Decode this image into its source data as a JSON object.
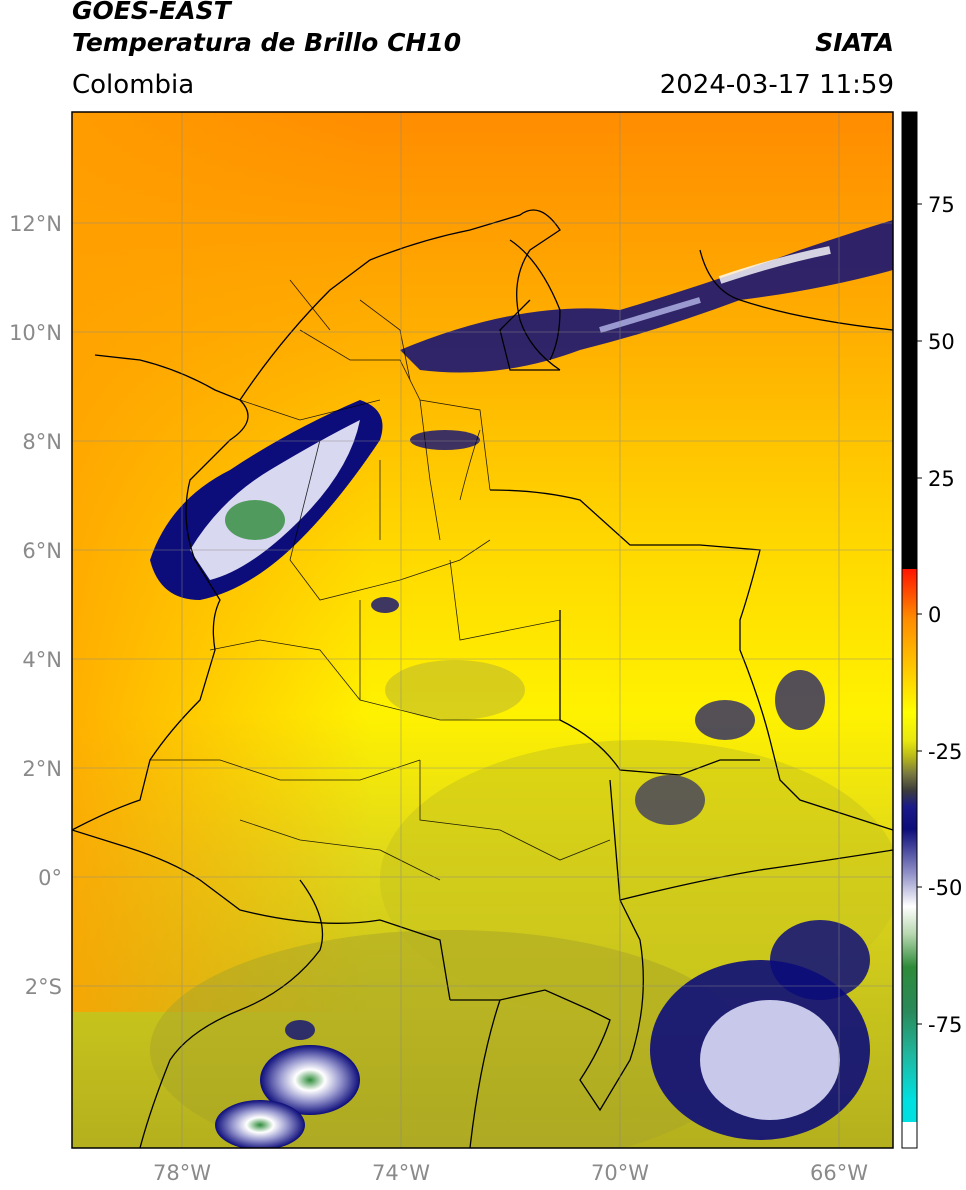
{
  "header": {
    "satellite": "GOES-EAST",
    "product": "Temperatura de Brillo CH10",
    "organization": "SIATA",
    "region": "Colombia",
    "timestamp": "2024-03-17 11:59"
  },
  "axes": {
    "lat_labels": [
      "12°N",
      "10°N",
      "8°N",
      "6°N",
      "4°N",
      "2°N",
      "0°",
      "2°S"
    ],
    "lon_labels": [
      "78°W",
      "74°W",
      "70°W",
      "66°W"
    ]
  },
  "colorbar": {
    "labels": [
      "75",
      "50",
      "25",
      "0",
      "-25",
      "-50",
      "-75"
    ],
    "colors": {
      "black": "#000000",
      "red": "#ff1400",
      "orange": "#ff8c00",
      "yellow": "#ffff00",
      "olive": "#b8b81a",
      "navy": "#0c0c7a",
      "white": "#ffffff",
      "green": "#2e8b3a",
      "cyan": "#00e0e0"
    }
  }
}
